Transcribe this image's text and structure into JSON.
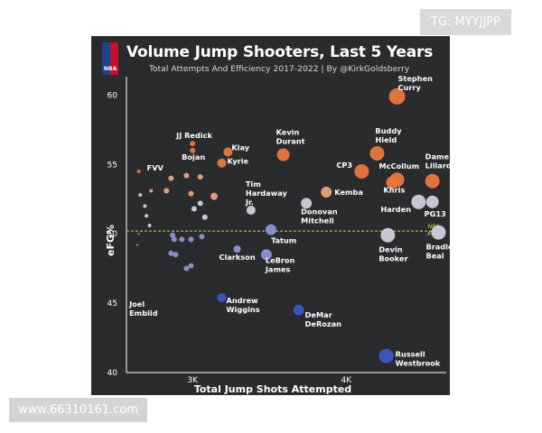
{
  "watermark_top": "TG: MYYJJPP",
  "watermark_bottom": "www.66310161.com",
  "logo_text": "NBA",
  "chart_data": {
    "type": "scatter",
    "title": "Volume Jump Shooters, Last 5 Years",
    "subtitle": "Total Attempts And Efficiency 2017-2022 | By @KirkGoldsberry",
    "xlabel": "Total Jump Shots Attempted",
    "ylabel": "eFG%",
    "x_ticks": [
      {
        "value": 3000,
        "label": "3K"
      },
      {
        "value": 4000,
        "label": "4K"
      }
    ],
    "y_ticks": [
      40,
      45,
      50,
      55,
      60
    ],
    "xlim": [
      2570,
      4650
    ],
    "ylim": [
      40,
      61
    ],
    "reference_line": {
      "y": 50.2,
      "label_lines": [
        "NBA",
        "AVG."
      ],
      "color": "#d6d24a"
    },
    "colors": {
      "high": "#e9773f",
      "mid": "#e9a27e",
      "neutral": "#d0d0dc",
      "low": "#8b93d9",
      "vlow": "#3c57c2"
    },
    "points": [
      {
        "x": 4330,
        "y": 59.9,
        "r": 9,
        "c": "high",
        "label_lines": [
          "Stephen",
          "Curry"
        ]
      },
      {
        "x": 4200,
        "y": 55.8,
        "r": 8,
        "c": "high",
        "label_lines": [
          "Buddy",
          "Hield"
        ]
      },
      {
        "x": 4100,
        "y": 54.5,
        "r": 8,
        "c": "high",
        "label_lines": [
          "CP3"
        ]
      },
      {
        "x": 4330,
        "y": 53.9,
        "r": 8,
        "c": "high",
        "label_lines": [
          "McCollum"
        ]
      },
      {
        "x": 4300,
        "y": 53.7,
        "r": 7,
        "c": "high",
        "label_lines": [
          "Khris"
        ]
      },
      {
        "x": 4560,
        "y": 53.8,
        "r": 8,
        "c": "high",
        "label_lines": [
          "Dame",
          "Lillard"
        ]
      },
      {
        "x": 3590,
        "y": 55.7,
        "r": 7,
        "c": "high",
        "label_lines": [
          "Kevin",
          "Durant"
        ]
      },
      {
        "x": 3870,
        "y": 53.0,
        "r": 6,
        "c": "mid",
        "label_lines": [
          "Kemba"
        ]
      },
      {
        "x": 4470,
        "y": 52.3,
        "r": 8,
        "c": "neutral",
        "label_lines": [
          "Harden"
        ]
      },
      {
        "x": 4560,
        "y": 52.3,
        "r": 7,
        "c": "neutral",
        "label_lines": [
          "PG13"
        ]
      },
      {
        "x": 3740,
        "y": 52.2,
        "r": 6,
        "c": "neutral",
        "label_lines": [
          "Donovan",
          "Mitchell"
        ]
      },
      {
        "x": 3230,
        "y": 55.9,
        "r": 5,
        "c": "high",
        "label_lines": [
          "Klay"
        ]
      },
      {
        "x": 3190,
        "y": 55.1,
        "r": 5,
        "c": "high",
        "label_lines": [
          "Kyrie"
        ]
      },
      {
        "x": 3000,
        "y": 56.5,
        "r": 3,
        "c": "high",
        "label_lines": [
          "JJ Redick"
        ]
      },
      {
        "x": 3000,
        "y": 56.0,
        "r": 3,
        "c": "high",
        "label_lines": [
          "Bojan"
        ]
      },
      {
        "x": 2650,
        "y": 54.5,
        "r": 2,
        "c": "high",
        "label_lines": [
          "FVV"
        ]
      },
      {
        "x": 3380,
        "y": 51.7,
        "r": 5,
        "c": "neutral",
        "label_lines": [
          "Tim",
          "Hardaway",
          "Jr."
        ]
      },
      {
        "x": 4270,
        "y": 49.9,
        "r": 8,
        "c": "neutral",
        "label_lines": [
          "Devin",
          "Booker"
        ]
      },
      {
        "x": 4600,
        "y": 50.1,
        "r": 8,
        "c": "neutral",
        "label_lines": [
          "Bradley",
          "Beal"
        ]
      },
      {
        "x": 3510,
        "y": 50.3,
        "r": 6,
        "c": "low",
        "label_lines": [
          "Tatum"
        ]
      },
      {
        "x": 3290,
        "y": 48.9,
        "r": 4,
        "c": "low",
        "label_lines": [
          "Clarkson"
        ]
      },
      {
        "x": 3480,
        "y": 48.5,
        "r": 6,
        "c": "low",
        "label_lines": [
          "LeBron",
          "James"
        ]
      },
      {
        "x": 3190,
        "y": 45.4,
        "r": 5,
        "c": "vlow",
        "label_lines": [
          "Andrew",
          "Wiggins"
        ]
      },
      {
        "x": 3690,
        "y": 44.5,
        "r": 6,
        "c": "vlow",
        "label_lines": [
          "DeMar",
          "DeRozan"
        ]
      },
      {
        "x": 4260,
        "y": 41.2,
        "r": 8,
        "c": "vlow",
        "label_lines": [
          "Russell",
          "Westbrook"
        ]
      },
      {
        "x": 2600,
        "y": 45.0,
        "r": 1,
        "c": "neutral",
        "label_lines": [
          "Joel",
          "Embiid"
        ]
      },
      {
        "x": 2660,
        "y": 52.8,
        "r": 2,
        "c": "neutral",
        "label_lines": []
      },
      {
        "x": 2690,
        "y": 52.0,
        "r": 2,
        "c": "neutral",
        "label_lines": []
      },
      {
        "x": 2700,
        "y": 51.3,
        "r": 2,
        "c": "neutral",
        "label_lines": []
      },
      {
        "x": 2720,
        "y": 50.6,
        "r": 2,
        "c": "neutral",
        "label_lines": []
      },
      {
        "x": 2730,
        "y": 53.1,
        "r": 2,
        "c": "mid",
        "label_lines": []
      },
      {
        "x": 2650,
        "y": 50.0,
        "r": 1,
        "c": "mid",
        "label_lines": []
      },
      {
        "x": 2640,
        "y": 49.2,
        "r": 1,
        "c": "mid",
        "label_lines": []
      },
      {
        "x": 2830,
        "y": 53.1,
        "r": 3,
        "c": "mid",
        "label_lines": []
      },
      {
        "x": 2860,
        "y": 54.0,
        "r": 3,
        "c": "mid",
        "label_lines": []
      },
      {
        "x": 2960,
        "y": 54.2,
        "r": 3,
        "c": "mid",
        "label_lines": []
      },
      {
        "x": 3050,
        "y": 54.1,
        "r": 3,
        "c": "mid",
        "label_lines": []
      },
      {
        "x": 2990,
        "y": 52.9,
        "r": 3,
        "c": "mid",
        "label_lines": []
      },
      {
        "x": 3140,
        "y": 52.7,
        "r": 4,
        "c": "mid",
        "label_lines": []
      },
      {
        "x": 3050,
        "y": 52.2,
        "r": 3,
        "c": "neutral",
        "label_lines": []
      },
      {
        "x": 3010,
        "y": 51.8,
        "r": 3,
        "c": "neutral",
        "label_lines": []
      },
      {
        "x": 3080,
        "y": 51.2,
        "r": 3,
        "c": "neutral",
        "label_lines": []
      },
      {
        "x": 2870,
        "y": 49.9,
        "r": 3,
        "c": "low",
        "label_lines": []
      },
      {
        "x": 2880,
        "y": 49.6,
        "r": 3,
        "c": "low",
        "label_lines": []
      },
      {
        "x": 2930,
        "y": 49.6,
        "r": 3,
        "c": "low",
        "label_lines": []
      },
      {
        "x": 2990,
        "y": 49.6,
        "r": 3,
        "c": "low",
        "label_lines": []
      },
      {
        "x": 3060,
        "y": 49.8,
        "r": 3,
        "c": "low",
        "label_lines": []
      },
      {
        "x": 2860,
        "y": 48.6,
        "r": 3,
        "c": "low",
        "label_lines": []
      },
      {
        "x": 2890,
        "y": 48.5,
        "r": 3,
        "c": "low",
        "label_lines": []
      },
      {
        "x": 2960,
        "y": 47.5,
        "r": 3,
        "c": "low",
        "label_lines": []
      },
      {
        "x": 2990,
        "y": 47.7,
        "r": 3,
        "c": "low",
        "label_lines": []
      }
    ]
  }
}
